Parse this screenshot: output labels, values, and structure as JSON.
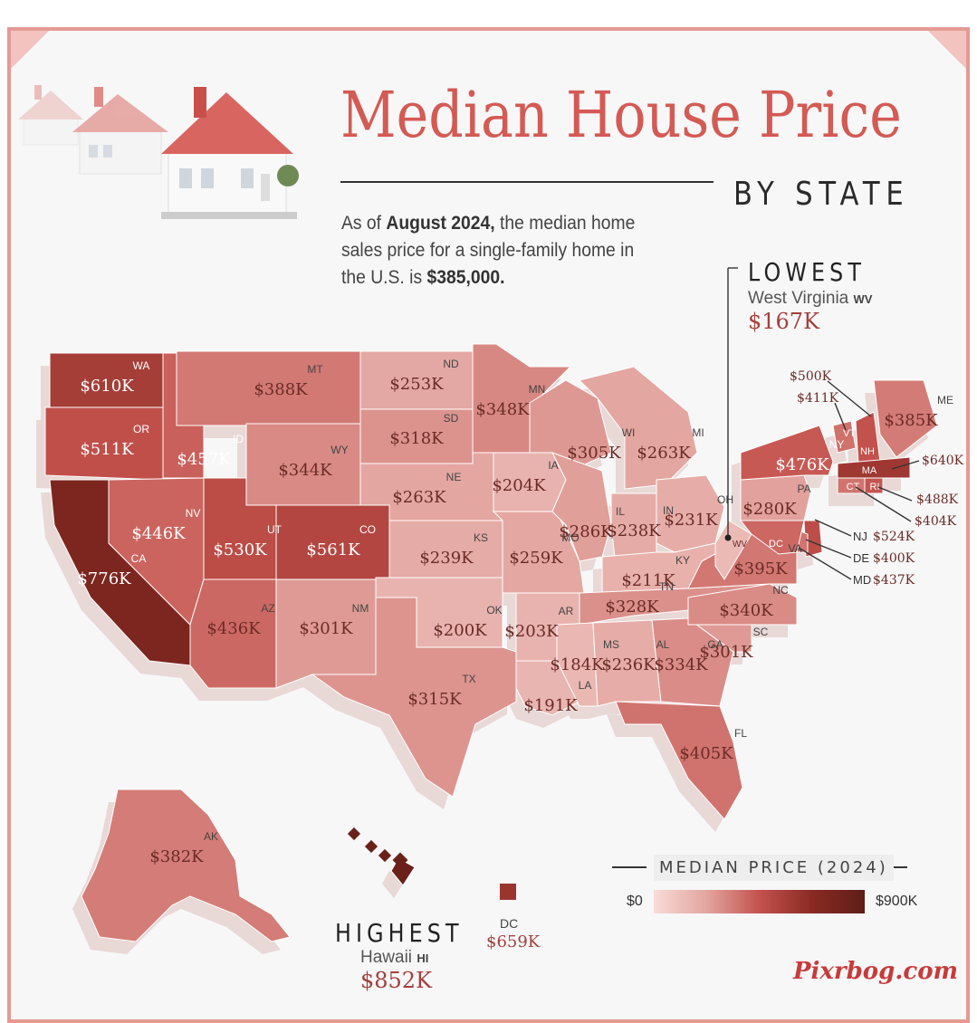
{
  "title": "Median House Price",
  "subtitle": "BY STATE",
  "intro": {
    "prefix": "As of ",
    "date": "August 2024,",
    "middle": " the median home sales price for a single-family home in the U.S. is ",
    "value": "$385,000."
  },
  "lowest": {
    "heading": "LOWEST",
    "state": "West Virginia",
    "abbr": "WV",
    "value": "$167K"
  },
  "highest": {
    "heading": "HIGHEST",
    "state": "Hawaii",
    "abbr": "HI",
    "value": "$852K"
  },
  "dc": {
    "label": "DC",
    "value": "$659K"
  },
  "legend": {
    "title": "MEDIAN PRICE (2024)",
    "min": "$0",
    "max": "$900K"
  },
  "brand": "Pixrbog.com",
  "colors": {
    "accent": "#d45a54",
    "frame": "#e49a93",
    "value_text": "#a3403c"
  },
  "chart_data": {
    "type": "choropleth",
    "title": "Median House Price",
    "subtitle": "BY STATE",
    "unit": "USD thousands",
    "scale": [
      0,
      900
    ],
    "states": [
      {
        "abbr": "WA",
        "value": 610
      },
      {
        "abbr": "OR",
        "value": 511
      },
      {
        "abbr": "CA",
        "value": 776
      },
      {
        "abbr": "ID",
        "value": 457
      },
      {
        "abbr": "NV",
        "value": 446
      },
      {
        "abbr": "UT",
        "value": 530
      },
      {
        "abbr": "AZ",
        "value": 436
      },
      {
        "abbr": "MT",
        "value": 388
      },
      {
        "abbr": "WY",
        "value": 344
      },
      {
        "abbr": "CO",
        "value": 561
      },
      {
        "abbr": "NM",
        "value": 301
      },
      {
        "abbr": "ND",
        "value": 253
      },
      {
        "abbr": "SD",
        "value": 318
      },
      {
        "abbr": "NE",
        "value": 263
      },
      {
        "abbr": "KS",
        "value": 239
      },
      {
        "abbr": "OK",
        "value": 200
      },
      {
        "abbr": "TX",
        "value": 315
      },
      {
        "abbr": "MN",
        "value": 348
      },
      {
        "abbr": "IA",
        "value": 204
      },
      {
        "abbr": "MO",
        "value": 259
      },
      {
        "abbr": "AR",
        "value": 203
      },
      {
        "abbr": "LA",
        "value": 191
      },
      {
        "abbr": "WI",
        "value": 305
      },
      {
        "abbr": "IL",
        "value": 286
      },
      {
        "abbr": "MI",
        "value": 263
      },
      {
        "abbr": "IN",
        "value": 238
      },
      {
        "abbr": "OH",
        "value": 231
      },
      {
        "abbr": "KY",
        "value": 211
      },
      {
        "abbr": "TN",
        "value": 328
      },
      {
        "abbr": "MS",
        "value": 184
      },
      {
        "abbr": "AL",
        "value": 236
      },
      {
        "abbr": "GA",
        "value": 334
      },
      {
        "abbr": "FL",
        "value": 405
      },
      {
        "abbr": "SC",
        "value": 301
      },
      {
        "abbr": "NC",
        "value": 340
      },
      {
        "abbr": "VA",
        "value": 395
      },
      {
        "abbr": "WV",
        "value": 167
      },
      {
        "abbr": "PA",
        "value": 280
      },
      {
        "abbr": "NY",
        "value": 476
      },
      {
        "abbr": "VT",
        "value": 411
      },
      {
        "abbr": "NH",
        "value": 500
      },
      {
        "abbr": "ME",
        "value": 385
      },
      {
        "abbr": "MA",
        "value": 640
      },
      {
        "abbr": "RI",
        "value": 488
      },
      {
        "abbr": "CT",
        "value": 404
      },
      {
        "abbr": "NJ",
        "value": 524
      },
      {
        "abbr": "DE",
        "value": 400
      },
      {
        "abbr": "MD",
        "value": 437
      },
      {
        "abbr": "DC",
        "value": 659
      },
      {
        "abbr": "AK",
        "value": 382
      },
      {
        "abbr": "HI",
        "value": 852
      }
    ]
  }
}
